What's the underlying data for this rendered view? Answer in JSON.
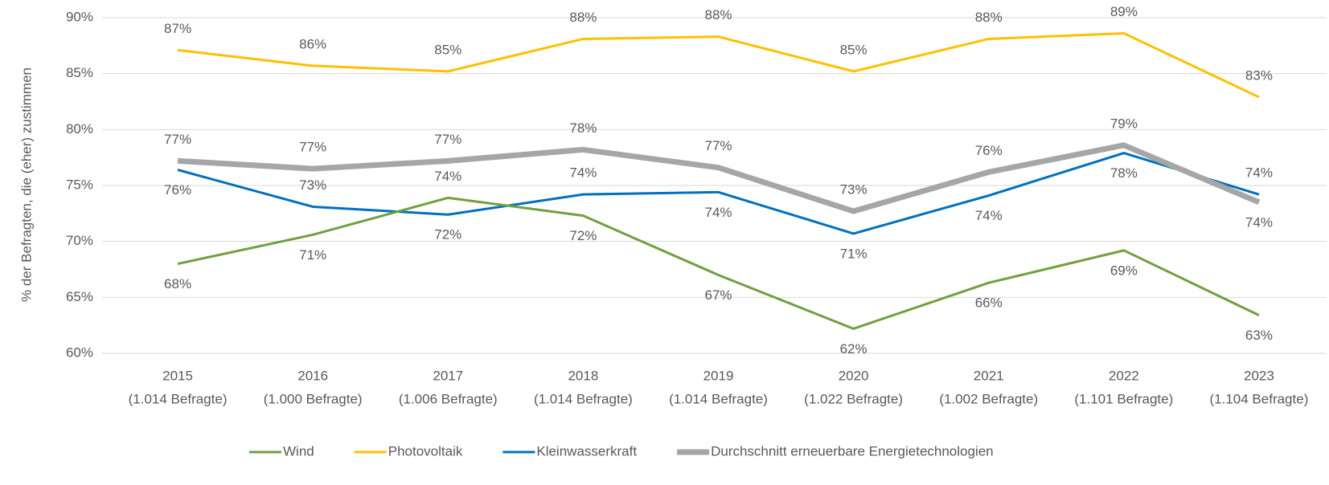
{
  "chart_data": {
    "type": "line",
    "y_axis_label": "% der Befragten, die (eher) zustimmen",
    "categories": [
      [
        "2015",
        "(1.014 Befragte)"
      ],
      [
        "2016",
        "(1.000 Befragte)"
      ],
      [
        "2017",
        "(1.006 Befragte)"
      ],
      [
        "2018",
        "(1.014 Befragte)"
      ],
      [
        "2019",
        "(1.014 Befragte)"
      ],
      [
        "2020",
        "(1.022 Befragte)"
      ],
      [
        "2021",
        "(1.002 Befragte)"
      ],
      [
        "2022",
        "(1.101 Befragte)"
      ],
      [
        "2023",
        "(1.104 Befragte)"
      ]
    ],
    "series": [
      {
        "name": "Wind",
        "color": "#70a040",
        "width": 3,
        "values": [
          68.0,
          70.6,
          73.9,
          72.3,
          67.0,
          62.2,
          66.3,
          69.2,
          63.4
        ],
        "value_labels": [
          "68%",
          "71%",
          "74%",
          "72%",
          "67%",
          "62%",
          "66%",
          "69%",
          "63%"
        ]
      },
      {
        "name": "Photovoltaik",
        "color": "#ffc000",
        "width": 3,
        "values": [
          87.1,
          85.7,
          85.2,
          88.1,
          88.3,
          85.2,
          88.1,
          88.6,
          82.9
        ],
        "value_labels": [
          "87%",
          "86%",
          "85%",
          "88%",
          "88%",
          "85%",
          "88%",
          "89%",
          "83%"
        ]
      },
      {
        "name": "Kleinwasserkraft",
        "color": "#0070c0",
        "width": 3,
        "values": [
          76.4,
          73.1,
          72.4,
          74.2,
          74.4,
          70.7,
          74.1,
          77.9,
          74.2
        ],
        "value_labels": [
          "76%",
          "73%",
          "72%",
          "74%",
          "74%",
          "71%",
          "74%",
          "78%",
          "74%"
        ]
      },
      {
        "name": "Durchschnitt erneuerbare Energietechnologien",
        "color": "#a6a6a6",
        "width": 7,
        "values": [
          77.2,
          76.5,
          77.2,
          78.2,
          76.6,
          72.7,
          76.2,
          78.6,
          73.5
        ],
        "value_labels": [
          "77%",
          "77%",
          "77%",
          "78%",
          "77%",
          "73%",
          "76%",
          "79%",
          "74%"
        ]
      }
    ],
    "ylim": [
      60,
      90
    ],
    "yticks": [
      {
        "value": 60,
        "label": "60%"
      },
      {
        "value": 65,
        "label": "65%"
      },
      {
        "value": 70,
        "label": "70%"
      },
      {
        "value": 75,
        "label": "75%"
      },
      {
        "value": 80,
        "label": "80%"
      },
      {
        "value": 85,
        "label": "85%"
      },
      {
        "value": 90,
        "label": "90%"
      }
    ],
    "grid": true,
    "legend": "bottom"
  }
}
